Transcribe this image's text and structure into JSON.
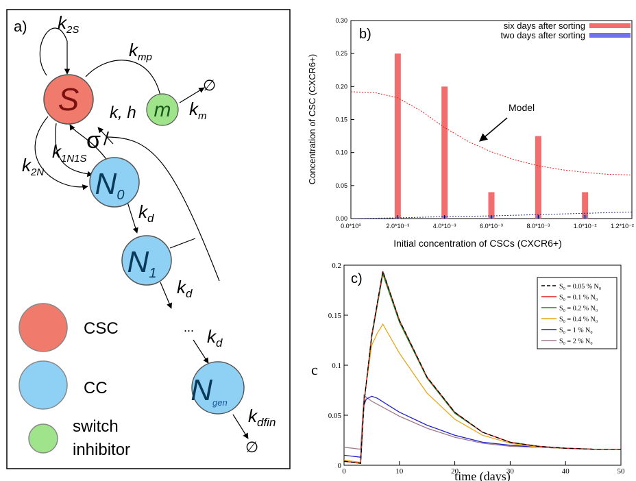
{
  "panel_a": {
    "label": "a)",
    "nodes": {
      "S": "S",
      "m": "m",
      "N0": "N",
      "N0_sub": "0",
      "N1": "N",
      "N1_sub": "1",
      "Ngen": "N",
      "Ngen_sub": "gen"
    },
    "rates": {
      "k2S": "k",
      "k2S_sub": "2S",
      "kmp": "k",
      "kmp_sub": "mp",
      "km": "k",
      "km_sub": "m",
      "kh": "k, h",
      "sigma": "σ",
      "k1N1S": "k",
      "k1N1S_sub": "1N1S",
      "k2N": "k",
      "k2N_sub": "2N",
      "kd1": "k",
      "kd1_sub": "d",
      "kd2": "k",
      "kd2_sub": "d",
      "kd3": "k",
      "kd3_sub": "d",
      "kdfin": "k",
      "kdfin_sub": "dfin",
      "ellipsis": "..."
    },
    "empty_set": "∅",
    "legend": [
      {
        "label": "CSC",
        "color": "#f07b6c"
      },
      {
        "label": "CC",
        "color": "#8fd0f5"
      },
      {
        "label": "switch",
        "label2": "inhibitor",
        "color": "#9fe38a"
      }
    ]
  },
  "chart_data": [
    {
      "panel": "b)",
      "type": "bar",
      "xlabel": "Initial concentration of CSCs (CXCR6+)",
      "ylabel": "Concentration of CSC (CXCR6+)",
      "xlim": [
        0,
        0.012
      ],
      "ylim": [
        0,
        0.3
      ],
      "xticks": [
        "0.0*10⁰",
        "2.0*10⁻³",
        "4.0*10⁻³",
        "6.0*10⁻³",
        "8.0*10⁻³",
        "1.0*10⁻²",
        "1.2*10⁻²"
      ],
      "yticks": [
        "0.00",
        "0.05",
        "0.10",
        "0.15",
        "0.20",
        "0.25",
        "0.30"
      ],
      "legend_position": "top-right",
      "series": [
        {
          "name": "six days after sorting",
          "color": "#f26e6e",
          "x": [
            0.002,
            0.004,
            0.006,
            0.008,
            0.01
          ],
          "values": [
            0.25,
            0.2,
            0.04,
            0.125,
            0.04
          ]
        },
        {
          "name": "two days after sorting",
          "color": "#6f72e8",
          "x": [
            0.002,
            0.004,
            0.006,
            0.008,
            0.01
          ],
          "values": [
            0.003,
            0.004,
            0.004,
            0.005,
            0.006
          ]
        }
      ],
      "model_curves": [
        {
          "color": "#e02020",
          "x": [
            0,
            0.001,
            0.002,
            0.003,
            0.004,
            0.005,
            0.006,
            0.007,
            0.008,
            0.009,
            0.01,
            0.011,
            0.012
          ],
          "y": [
            0.192,
            0.191,
            0.183,
            0.163,
            0.138,
            0.117,
            0.101,
            0.089,
            0.08,
            0.074,
            0.07,
            0.067,
            0.066
          ]
        },
        {
          "color": "#2a2a7a",
          "x": [
            0,
            0.002,
            0.004,
            0.006,
            0.008,
            0.01,
            0.012
          ],
          "y": [
            0,
            0.001,
            0.003,
            0.004,
            0.006,
            0.008,
            0.01
          ]
        }
      ],
      "annotation": "Model"
    },
    {
      "panel": "c)",
      "type": "line",
      "xlabel": "time (days)",
      "ylabel": "c",
      "xlim": [
        0,
        50
      ],
      "ylim": [
        0,
        0.2
      ],
      "xticks": [
        "0",
        "10",
        "20",
        "30",
        "40",
        "50"
      ],
      "yticks": [
        "0",
        "0.05",
        "0.1",
        "0.15",
        "0.2"
      ],
      "legend_position": "top-right",
      "series": [
        {
          "name": "S₀ = 0.05 % N₀",
          "color": "#000000",
          "dashed": true,
          "x": [
            0,
            3,
            3.6,
            5,
            7,
            10,
            15,
            20,
            25,
            30,
            35,
            40,
            45,
            50
          ],
          "y": [
            0.004,
            0.002,
            0.062,
            0.13,
            0.194,
            0.145,
            0.088,
            0.053,
            0.033,
            0.023,
            0.019,
            0.017,
            0.016,
            0.016
          ]
        },
        {
          "name": "S₀ = 0.1 % N₀",
          "color": "#e02020",
          "x": [
            0,
            3,
            3.6,
            5,
            7,
            10,
            15,
            20,
            25,
            30,
            35,
            40,
            45,
            50
          ],
          "y": [
            0.004,
            0.002,
            0.062,
            0.13,
            0.194,
            0.145,
            0.088,
            0.053,
            0.033,
            0.023,
            0.019,
            0.017,
            0.016,
            0.016
          ]
        },
        {
          "name": "S₀ = 0.2 % N₀",
          "color": "#1a8a1a",
          "x": [
            0,
            3,
            3.6,
            5,
            7,
            10,
            15,
            20,
            25,
            30,
            35,
            40,
            45,
            50
          ],
          "y": [
            0.004,
            0.002,
            0.062,
            0.128,
            0.191,
            0.143,
            0.087,
            0.052,
            0.033,
            0.023,
            0.019,
            0.017,
            0.016,
            0.016
          ]
        },
        {
          "name": "S₀ = 0.4 % N₀",
          "color": "#e6a817",
          "x": [
            0,
            3,
            3.6,
            5,
            6,
            7,
            10,
            15,
            20,
            25,
            30,
            35,
            40,
            45,
            50
          ],
          "y": [
            0.005,
            0.003,
            0.065,
            0.12,
            0.132,
            0.141,
            0.112,
            0.072,
            0.046,
            0.03,
            0.022,
            0.018,
            0.017,
            0.016,
            0.016
          ]
        },
        {
          "name": "S₀ = 1 % N₀",
          "color": "#2020c8",
          "x": [
            0,
            3,
            3.6,
            4,
            5,
            6,
            8,
            10,
            15,
            20,
            25,
            30,
            35,
            40,
            45,
            50
          ],
          "y": [
            0.01,
            0.008,
            0.06,
            0.066,
            0.069,
            0.067,
            0.06,
            0.053,
            0.04,
            0.03,
            0.023,
            0.02,
            0.018,
            0.017,
            0.016,
            0.016
          ]
        },
        {
          "name": "S₀ = 2 % N₀",
          "color": "#a07a8c",
          "x": [
            0,
            3,
            3.6,
            4,
            5,
            6,
            8,
            10,
            15,
            20,
            25,
            30,
            35,
            40,
            45,
            50
          ],
          "y": [
            0.018,
            0.016,
            0.07,
            0.068,
            0.064,
            0.061,
            0.055,
            0.049,
            0.037,
            0.028,
            0.022,
            0.019,
            0.018,
            0.017,
            0.016,
            0.016
          ]
        }
      ]
    }
  ]
}
